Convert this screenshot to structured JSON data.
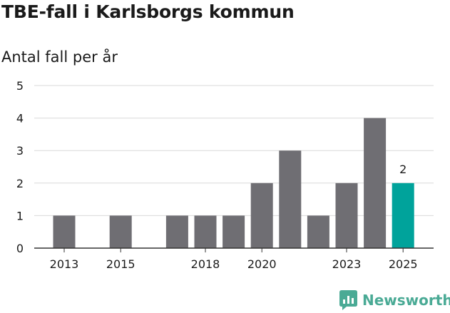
{
  "title": "TBE-fall i Karlsborgs kommun",
  "subtitle": "Antal fall per år",
  "brand": {
    "name": "Newsworthy"
  },
  "colors": {
    "bar": "#6f6e73",
    "highlight": "#00a39b",
    "grid": "#d9d9d9",
    "axis": "#333333",
    "text": "#1a1a1a"
  },
  "chart_data": {
    "type": "bar",
    "title": "TBE-fall i Karlsborgs kommun",
    "subtitle": "Antal fall per år",
    "categories": [
      "2013",
      "2014",
      "2015",
      "2016",
      "2017",
      "2018",
      "2019",
      "2020",
      "2021",
      "2022",
      "2023",
      "2024",
      "2025"
    ],
    "values": [
      1,
      0,
      1,
      0,
      1,
      1,
      1,
      2,
      3,
      1,
      2,
      4,
      2
    ],
    "x_tick_labels": [
      "2013",
      "2015",
      "2018",
      "2020",
      "2023",
      "2025"
    ],
    "y_ticks": [
      0,
      1,
      2,
      3,
      4,
      5
    ],
    "ylim": [
      0,
      5
    ],
    "highlight_category": "2025",
    "data_labels": [
      {
        "category": "2025",
        "text": "2"
      }
    ],
    "grid": true,
    "legend": "none"
  }
}
